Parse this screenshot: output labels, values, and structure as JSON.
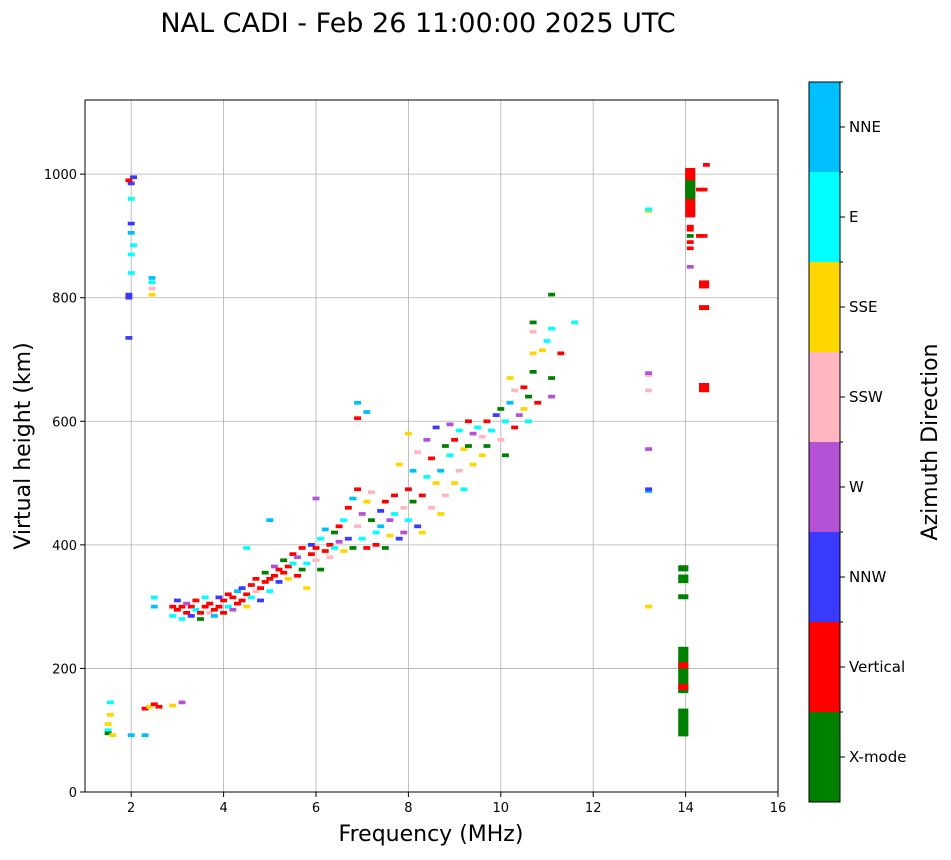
{
  "chart_data": {
    "type": "scatter",
    "title": "NAL CADI - Feb 26 11:00:00 2025 UTC",
    "xlabel": "Frequency (MHz)",
    "ylabel": "Virtual height (km)",
    "xlim": [
      1,
      16
    ],
    "ylim": [
      0,
      1120
    ],
    "xticks": [
      2,
      4,
      6,
      8,
      10,
      12,
      14,
      16
    ],
    "yticks": [
      0,
      200,
      400,
      600,
      800,
      1000
    ],
    "grid": true,
    "colorbar": {
      "label": "Azimuth Direction",
      "categories": [
        {
          "name": "X-mode",
          "color": "#008000"
        },
        {
          "name": "Vertical",
          "color": "#ff0000"
        },
        {
          "name": "NNW",
          "color": "#3a3aff"
        },
        {
          "name": "W",
          "color": "#b452d6"
        },
        {
          "name": "SSW",
          "color": "#ffb6c1"
        },
        {
          "name": "SSE",
          "color": "#ffd700"
        },
        {
          "name": "E",
          "color": "#00ffff"
        },
        {
          "name": "NNE",
          "color": "#00bfff"
        }
      ]
    },
    "points_format": [
      "frequency_mhz",
      "height_km",
      "category_index"
    ],
    "points": [
      [
        2.9,
        300,
        1
      ],
      [
        2.9,
        285,
        6
      ],
      [
        3.0,
        295,
        1
      ],
      [
        3.0,
        310,
        2
      ],
      [
        3.1,
        280,
        6
      ],
      [
        3.1,
        300,
        1
      ],
      [
        3.2,
        290,
        1
      ],
      [
        3.2,
        305,
        3
      ],
      [
        3.3,
        285,
        2
      ],
      [
        3.3,
        300,
        1
      ],
      [
        3.4,
        295,
        6
      ],
      [
        3.4,
        310,
        1
      ],
      [
        3.5,
        290,
        1
      ],
      [
        3.5,
        280,
        0
      ],
      [
        3.6,
        300,
        1
      ],
      [
        3.6,
        315,
        6
      ],
      [
        3.7,
        290,
        4
      ],
      [
        3.7,
        305,
        1
      ],
      [
        3.8,
        295,
        1
      ],
      [
        3.8,
        285,
        7
      ],
      [
        3.9,
        300,
        1
      ],
      [
        3.9,
        315,
        2
      ],
      [
        4.0,
        310,
        1
      ],
      [
        4.0,
        290,
        1
      ],
      [
        4.1,
        300,
        6
      ],
      [
        4.1,
        320,
        1
      ],
      [
        4.2,
        295,
        3
      ],
      [
        4.2,
        315,
        1
      ],
      [
        4.3,
        305,
        1
      ],
      [
        4.3,
        325,
        7
      ],
      [
        4.4,
        310,
        1
      ],
      [
        4.4,
        330,
        2
      ],
      [
        4.5,
        320,
        1
      ],
      [
        4.5,
        300,
        5
      ],
      [
        4.6,
        335,
        1
      ],
      [
        4.6,
        315,
        6
      ],
      [
        4.7,
        325,
        4
      ],
      [
        4.7,
        345,
        1
      ],
      [
        4.8,
        330,
        1
      ],
      [
        4.8,
        310,
        2
      ],
      [
        4.9,
        340,
        1
      ],
      [
        4.9,
        355,
        0
      ],
      [
        5.0,
        345,
        1
      ],
      [
        5.0,
        325,
        6
      ],
      [
        5.1,
        350,
        1
      ],
      [
        5.1,
        365,
        3
      ],
      [
        5.2,
        340,
        2
      ],
      [
        5.2,
        360,
        1
      ],
      [
        5.3,
        355,
        1
      ],
      [
        5.3,
        375,
        0
      ],
      [
        5.4,
        345,
        5
      ],
      [
        5.4,
        365,
        1
      ],
      [
        5.5,
        370,
        6
      ],
      [
        5.5,
        385,
        1
      ],
      [
        5.6,
        350,
        1
      ],
      [
        5.6,
        380,
        3
      ],
      [
        5.7,
        360,
        0
      ],
      [
        5.7,
        395,
        1
      ],
      [
        5.8,
        370,
        6
      ],
      [
        5.8,
        330,
        5
      ],
      [
        5.9,
        385,
        1
      ],
      [
        5.9,
        400,
        2
      ],
      [
        6.0,
        375,
        4
      ],
      [
        6.0,
        395,
        1
      ],
      [
        6.1,
        410,
        6
      ],
      [
        6.1,
        360,
        0
      ],
      [
        6.2,
        390,
        1
      ],
      [
        6.2,
        425,
        7
      ],
      [
        6.3,
        400,
        1
      ],
      [
        6.3,
        380,
        4
      ],
      [
        6.4,
        420,
        0
      ],
      [
        6.4,
        395,
        6
      ],
      [
        6.5,
        430,
        1
      ],
      [
        6.5,
        405,
        3
      ],
      [
        6.6,
        390,
        5
      ],
      [
        6.6,
        440,
        6
      ],
      [
        6.7,
        460,
        1
      ],
      [
        6.7,
        410,
        2
      ],
      [
        6.8,
        475,
        7
      ],
      [
        6.8,
        395,
        0
      ],
      [
        6.9,
        430,
        4
      ],
      [
        6.9,
        490,
        1
      ],
      [
        7.0,
        410,
        6
      ],
      [
        7.0,
        450,
        3
      ],
      [
        7.1,
        470,
        5
      ],
      [
        7.1,
        395,
        1
      ],
      [
        7.2,
        440,
        0
      ],
      [
        7.2,
        485,
        4
      ],
      [
        7.3,
        420,
        6
      ],
      [
        7.3,
        400,
        1
      ],
      [
        7.4,
        455,
        2
      ],
      [
        7.4,
        430,
        7
      ],
      [
        7.5,
        470,
        1
      ],
      [
        7.5,
        395,
        0
      ],
      [
        7.6,
        440,
        3
      ],
      [
        7.6,
        415,
        5
      ],
      [
        7.7,
        480,
        1
      ],
      [
        7.7,
        450,
        6
      ],
      [
        7.8,
        410,
        2
      ],
      [
        7.8,
        530,
        5
      ],
      [
        7.9,
        420,
        3
      ],
      [
        7.9,
        460,
        4
      ],
      [
        8.0,
        490,
        1
      ],
      [
        8.0,
        440,
        6
      ],
      [
        8.1,
        470,
        0
      ],
      [
        8.1,
        520,
        7
      ],
      [
        8.2,
        430,
        2
      ],
      [
        8.2,
        550,
        4
      ],
      [
        8.3,
        420,
        5
      ],
      [
        8.3,
        480,
        1
      ],
      [
        8.4,
        510,
        6
      ],
      [
        8.4,
        570,
        3
      ],
      [
        8.5,
        460,
        4
      ],
      [
        8.5,
        540,
        1
      ],
      [
        8.6,
        500,
        5
      ],
      [
        8.6,
        590,
        2
      ],
      [
        8.7,
        450,
        5
      ],
      [
        8.7,
        520,
        7
      ],
      [
        8.8,
        560,
        0
      ],
      [
        8.8,
        480,
        4
      ],
      [
        8.9,
        545,
        6
      ],
      [
        8.9,
        595,
        3
      ],
      [
        9.0,
        500,
        5
      ],
      [
        9.0,
        570,
        1
      ],
      [
        9.1,
        520,
        4
      ],
      [
        9.1,
        585,
        6
      ],
      [
        9.2,
        490,
        6
      ],
      [
        9.2,
        555,
        5
      ],
      [
        9.3,
        560,
        0
      ],
      [
        9.3,
        600,
        1
      ],
      [
        9.4,
        530,
        5
      ],
      [
        9.4,
        580,
        3
      ],
      [
        9.5,
        590,
        6
      ],
      [
        9.6,
        545,
        5
      ],
      [
        9.6,
        575,
        4
      ],
      [
        9.7,
        600,
        1
      ],
      [
        9.7,
        560,
        0
      ],
      [
        9.8,
        585,
        6
      ],
      [
        9.9,
        610,
        2
      ],
      [
        10.0,
        620,
        0
      ],
      [
        10.0,
        570,
        4
      ],
      [
        10.1,
        545,
        0
      ],
      [
        10.1,
        600,
        6
      ],
      [
        10.2,
        630,
        7
      ],
      [
        10.2,
        670,
        5
      ],
      [
        10.3,
        590,
        1
      ],
      [
        10.3,
        650,
        4
      ],
      [
        10.4,
        610,
        3
      ],
      [
        10.5,
        655,
        1
      ],
      [
        10.5,
        620,
        5
      ],
      [
        10.6,
        640,
        0
      ],
      [
        10.6,
        600,
        6
      ],
      [
        10.7,
        680,
        0
      ],
      [
        10.7,
        710,
        5
      ],
      [
        10.7,
        745,
        4
      ],
      [
        10.7,
        760,
        0
      ],
      [
        10.8,
        630,
        1
      ],
      [
        10.9,
        715,
        5
      ],
      [
        11.0,
        730,
        6
      ],
      [
        11.1,
        640,
        3
      ],
      [
        11.1,
        670,
        0
      ],
      [
        11.1,
        805,
        0
      ],
      [
        11.1,
        750,
        6
      ],
      [
        11.3,
        710,
        1
      ],
      [
        11.6,
        760,
        6
      ],
      [
        6.9,
        630,
        7
      ],
      [
        6.9,
        605,
        1
      ],
      [
        7.1,
        615,
        7
      ],
      [
        8.0,
        580,
        5
      ],
      [
        5.0,
        440,
        7
      ],
      [
        4.5,
        395,
        6
      ],
      [
        6.0,
        475,
        3
      ],
      [
        1.5,
        100,
        6
      ],
      [
        1.5,
        110,
        5
      ],
      [
        1.55,
        125,
        5
      ],
      [
        1.55,
        145,
        6
      ],
      [
        1.5,
        95,
        0
      ],
      [
        1.6,
        92,
        5
      ],
      [
        2.0,
        92,
        7
      ],
      [
        2.3,
        92,
        7
      ],
      [
        2.3,
        135,
        1
      ],
      [
        2.4,
        138,
        5
      ],
      [
        2.5,
        142,
        1
      ],
      [
        2.6,
        138,
        1
      ],
      [
        2.9,
        140,
        5
      ],
      [
        3.1,
        145,
        3
      ],
      [
        2.5,
        300,
        7
      ],
      [
        2.5,
        315,
        6
      ],
      [
        1.95,
        735,
        2
      ],
      [
        1.95,
        800,
        2
      ],
      [
        1.95,
        805,
        2
      ],
      [
        2.0,
        840,
        6
      ],
      [
        2.0,
        870,
        6
      ],
      [
        2.0,
        905,
        7
      ],
      [
        2.0,
        920,
        2
      ],
      [
        2.0,
        960,
        6
      ],
      [
        2.0,
        985,
        2
      ],
      [
        2.05,
        995,
        2
      ],
      [
        1.95,
        990,
        1
      ],
      [
        2.05,
        885,
        6
      ],
      [
        2.45,
        805,
        5
      ],
      [
        2.45,
        815,
        4
      ],
      [
        2.45,
        825,
        6
      ],
      [
        2.45,
        832,
        7
      ],
      [
        13.2,
        940,
        5
      ],
      [
        13.2,
        943,
        6
      ],
      [
        13.2,
        675,
        4
      ],
      [
        13.2,
        678,
        3
      ],
      [
        13.2,
        650,
        4
      ],
      [
        13.2,
        555,
        3
      ],
      [
        13.2,
        487,
        7
      ],
      [
        13.2,
        490,
        2
      ],
      [
        13.2,
        300,
        5
      ],
      [
        14.1,
        850,
        3
      ],
      [
        14.1,
        880,
        1
      ],
      [
        14.1,
        890,
        1
      ],
      [
        14.1,
        900,
        0
      ],
      [
        14.1,
        910,
        1
      ],
      [
        14.1,
        915,
        1
      ],
      [
        14.1,
        945,
        3
      ],
      [
        14.4,
        900,
        1
      ],
      [
        14.4,
        975,
        1
      ],
      [
        14.45,
        1015,
        1
      ],
      [
        14.3,
        900,
        1
      ],
      [
        14.3,
        975,
        1
      ]
    ],
    "bands_format": [
      "frequency_mhz",
      "height_from_km",
      "height_to_km",
      "category_index"
    ],
    "bands": [
      [
        13.95,
        90,
        135,
        0
      ],
      [
        13.95,
        160,
        235,
        0
      ],
      [
        13.95,
        165,
        175,
        1
      ],
      [
        13.95,
        200,
        210,
        1
      ],
      [
        13.95,
        312,
        320,
        0
      ],
      [
        13.95,
        338,
        352,
        0
      ],
      [
        13.95,
        357,
        367,
        0
      ],
      [
        14.4,
        647,
        662,
        1
      ],
      [
        14.4,
        780,
        788,
        1
      ],
      [
        14.4,
        815,
        828,
        1
      ],
      [
        14.1,
        930,
        1010,
        1
      ],
      [
        14.1,
        960,
        990,
        0
      ]
    ]
  }
}
